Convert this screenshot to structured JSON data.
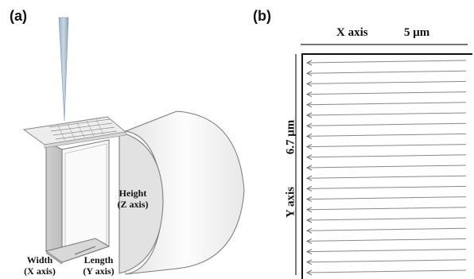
{
  "panel_a": {
    "label": "(a)",
    "height_label": {
      "line1": "Height",
      "line2": "(Z axis)"
    },
    "width_label": {
      "line1": "Width",
      "line2": "(X axis)"
    },
    "length_label": {
      "line1": "Length",
      "line2": "(Y axis)"
    }
  },
  "panel_b": {
    "label": "(b)",
    "x_axis_label": "X axis",
    "x_scale": "5 μm",
    "y_axis_label": "Y axis",
    "y_scale": "6.7 μm",
    "scan_line_count": 21
  }
}
